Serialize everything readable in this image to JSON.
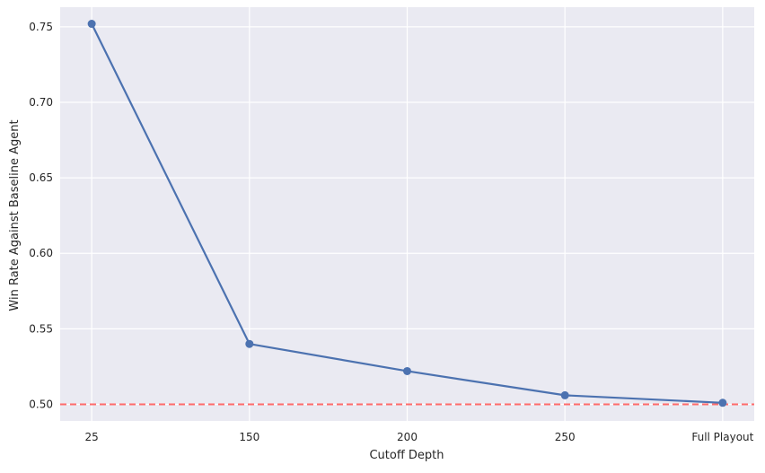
{
  "chart_data": {
    "type": "line",
    "title": "",
    "xlabel": "Cutoff Depth",
    "ylabel": "Win Rate Against Baseline Agent",
    "categories": [
      "25",
      "150",
      "200",
      "250",
      "Full Playout"
    ],
    "series": [
      {
        "values": [
          0.752,
          0.54,
          0.522,
          0.506,
          0.501
        ],
        "color": "#4c72b0"
      }
    ],
    "reference_line": {
      "y": 0.5,
      "style": "dashed",
      "color": "#ff6b6b"
    },
    "yticks": [
      "0.50",
      "0.55",
      "0.60",
      "0.65",
      "0.70",
      "0.75"
    ],
    "ylim": [
      0.489,
      0.763
    ],
    "grid": true,
    "background": "#eaeaf2",
    "grid_color": "#ffffff"
  }
}
